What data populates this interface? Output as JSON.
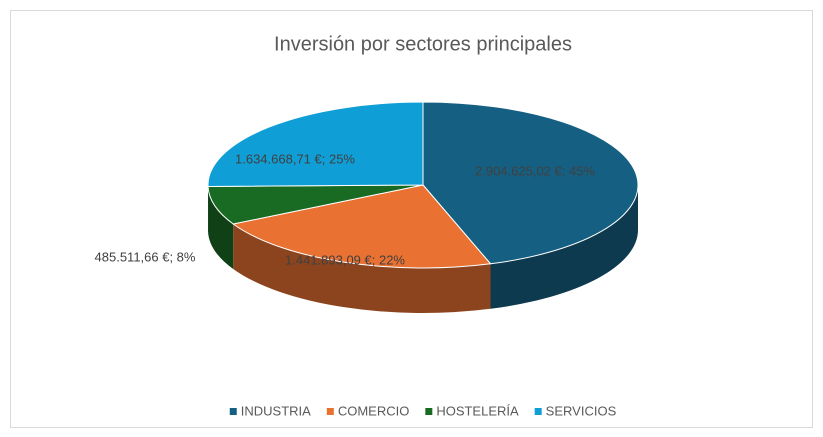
{
  "chart_data": {
    "type": "pie",
    "title": "Inversión por sectores principales",
    "categories": [
      "INDUSTRIA",
      "COMERCIO",
      "HOSTELERÍA",
      "SERVICIOS"
    ],
    "values": [
      2904625.02,
      1441893.09,
      485511.66,
      1634668.71
    ],
    "value_labels": [
      "2.904.625,02 €; 45%",
      "1.441.893,09 €; 22%",
      "485.511,66 €; 8%",
      "1.634.668,71 €; 25%"
    ],
    "colors": [
      "#156082",
      "#e97132",
      "#196b24",
      "#0f9ed5"
    ],
    "legend": "bottom"
  }
}
